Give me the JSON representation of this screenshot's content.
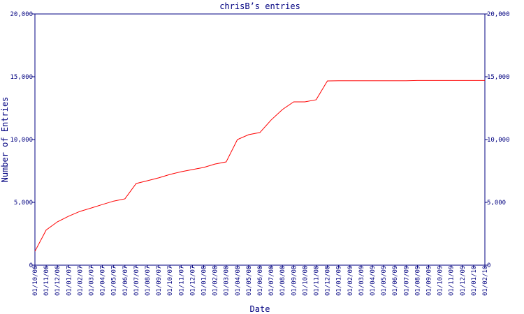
{
  "chart_data": {
    "type": "line",
    "title": "chrisB’s entries",
    "x_label": "Date",
    "y_label": "Number of Entries",
    "categories": [
      "01/10/06",
      "01/11/06",
      "01/12/06",
      "01/01/07",
      "01/02/07",
      "01/03/07",
      "01/04/07",
      "01/05/07",
      "01/06/07",
      "01/07/07",
      "01/08/07",
      "01/09/07",
      "01/10/07",
      "01/11/07",
      "01/12/07",
      "01/01/08",
      "01/02/08",
      "01/03/08",
      "01/04/08",
      "01/05/08",
      "01/06/08",
      "01/07/08",
      "01/08/08",
      "01/09/08",
      "01/10/08",
      "01/11/08",
      "01/12/08",
      "01/01/09",
      "01/02/09",
      "01/03/09",
      "01/04/09",
      "01/05/09",
      "01/06/09",
      "01/07/09",
      "01/08/09",
      "01/09/09",
      "01/10/09",
      "01/11/09",
      "01/12/09",
      "01/01/10",
      "01/02/10"
    ],
    "series": [
      {
        "name": "entries",
        "color": "#ff0000",
        "values": [
          1100,
          2800,
          3450,
          3900,
          4280,
          4550,
          4830,
          5100,
          5280,
          6500,
          6720,
          6950,
          7220,
          7440,
          7610,
          7780,
          8050,
          8220,
          10000,
          10390,
          10560,
          11560,
          12390,
          13000,
          13000,
          13170,
          14670,
          14680,
          14680,
          14680,
          14680,
          14680,
          14680,
          14680,
          14700,
          14700,
          14700,
          14700,
          14700,
          14700,
          14700
        ]
      }
    ],
    "ylim": [
      0,
      20000
    ],
    "yticks": [
      0,
      {
        "value": 5000,
        "label": "5,000"
      },
      {
        "value": 10000,
        "label": "10,000"
      },
      {
        "value": 15000,
        "label": "15,000"
      },
      {
        "value": 20000,
        "label": "20,000"
      }
    ],
    "axis_color": "#000080"
  }
}
